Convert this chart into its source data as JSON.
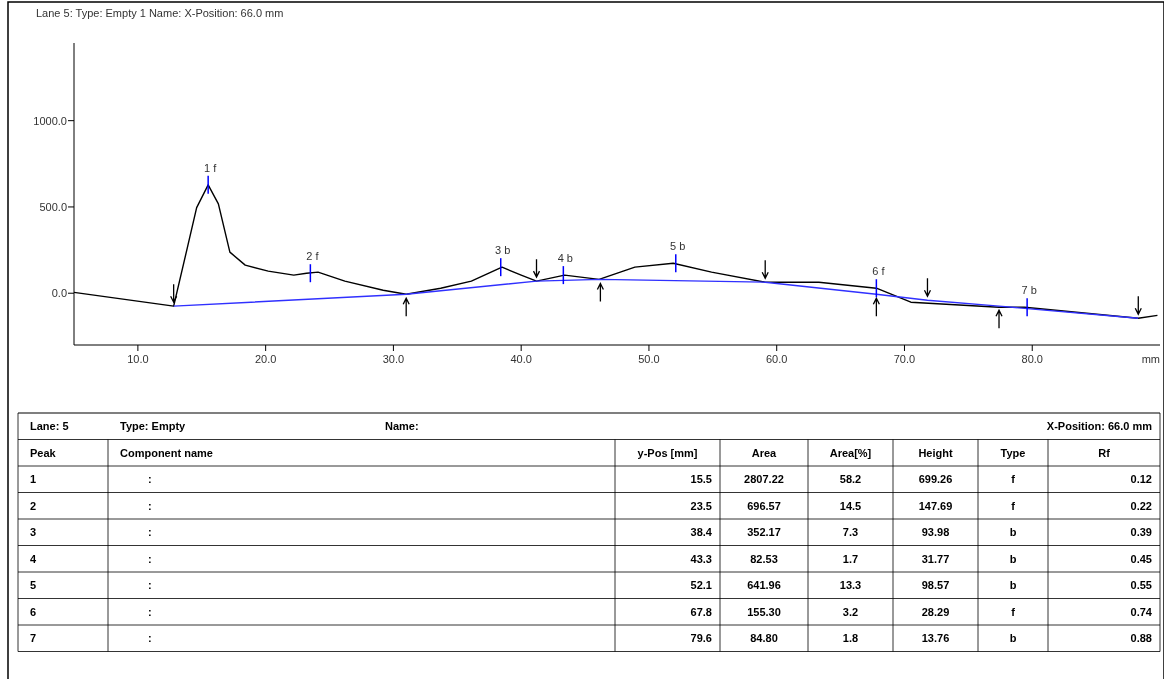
{
  "chart_data": [
    {
      "type": "line",
      "title": "Lane 5:   Type: Empty  1    Name:     X-Position: 66.0 mm",
      "xlabel": "mm",
      "xlim": [
        5,
        90
      ],
      "ylim": [
        -300,
        1450
      ],
      "xticks": [
        {
          "value": 10,
          "label": "10.0"
        },
        {
          "value": 20,
          "label": "20.0"
        },
        {
          "value": 30,
          "label": "30.0"
        },
        {
          "value": 40,
          "label": "40.0"
        },
        {
          "value": 50,
          "label": "50.0"
        },
        {
          "value": 60,
          "label": "60.0"
        },
        {
          "value": 70,
          "label": "70.0"
        },
        {
          "value": 80,
          "label": "80.0"
        }
      ],
      "yticks": [
        {
          "value": 0,
          "label": "0.0"
        },
        {
          "value": 500,
          "label": "500.0"
        },
        {
          "value": 1000,
          "label": "1000.0"
        }
      ],
      "grid": false,
      "series": [
        {
          "type": "line",
          "color": "#000000",
          "x": [
            5.0,
            12.8,
            13.9,
            14.6,
            15.5,
            16.3,
            17.2,
            18.4,
            20.2,
            22.2,
            23.2,
            24.1,
            26.2,
            29.2,
            31.0,
            33.7,
            36.1,
            38.5,
            40.0,
            41.2,
            43.4,
            46.1,
            48.9,
            51.9,
            54.9,
            59.1,
            63.3,
            67.8,
            70.5,
            77.4,
            79.4,
            88.3,
            89.8
          ],
          "values": [
            5,
            -75,
            273,
            496,
            628,
            518,
            238,
            163,
            128,
            105,
            116,
            122,
            70,
            17,
            -6,
            29,
            70,
            151,
            105,
            70,
            105,
            80,
            151,
            174,
            122,
            64,
            64,
            29,
            -52,
            -81,
            -81,
            -145,
            -128
          ]
        },
        {
          "type": "line",
          "color": "#3030ff",
          "x": [
            12.8,
            31.0,
            41.2,
            46.2,
            59.1,
            67.8,
            71.8,
            77.4,
            88.3
          ],
          "values": [
            -75,
            -6,
            70,
            80,
            64,
            -6,
            -41,
            -75,
            -145
          ]
        }
      ],
      "annotations": [
        {
          "text": "1 f",
          "x": 15.5,
          "y": 628
        },
        {
          "text": "2 f",
          "x": 23.5,
          "y": 116
        },
        {
          "text": "3 b",
          "x": 38.4,
          "y": 151
        },
        {
          "text": "4 b",
          "x": 43.3,
          "y": 105
        },
        {
          "text": "5 b",
          "x": 52.1,
          "y": 174
        },
        {
          "text": "6 f",
          "x": 67.8,
          "y": 29
        },
        {
          "text": "7 b",
          "x": 79.6,
          "y": -81
        }
      ]
    },
    {
      "type": "other",
      "categories": [
        "1",
        "2",
        "3",
        "4",
        "5",
        "6",
        "7"
      ],
      "annotations": [
        "Lane: 5",
        "Type: Empty",
        "Name:",
        "X-Position: 66.0 mm",
        "Peak",
        "Component name",
        "y-Pos [mm]",
        "Area",
        "Area[%]",
        "Height",
        "Type",
        "Rf",
        ":",
        "15.5",
        "2807.22",
        "58.2",
        "699.26",
        "f",
        "0.12",
        ":",
        "23.5",
        "696.57",
        "14.5",
        "147.69",
        "f",
        "0.22",
        ":",
        "38.4",
        "352.17",
        "7.3",
        "93.98",
        "b",
        "0.39",
        ":",
        "43.3",
        "82.53",
        "1.7",
        "31.77",
        "b",
        "0.45",
        ":",
        "52.1",
        "641.96",
        "13.3",
        "98.57",
        "b",
        "0.55",
        ":",
        "67.8",
        "155.30",
        "3.2",
        "28.29",
        "f",
        "0.74",
        ":",
        "79.6",
        "84.80",
        "1.8",
        "13.76",
        "b",
        "0.88"
      ]
    }
  ]
}
